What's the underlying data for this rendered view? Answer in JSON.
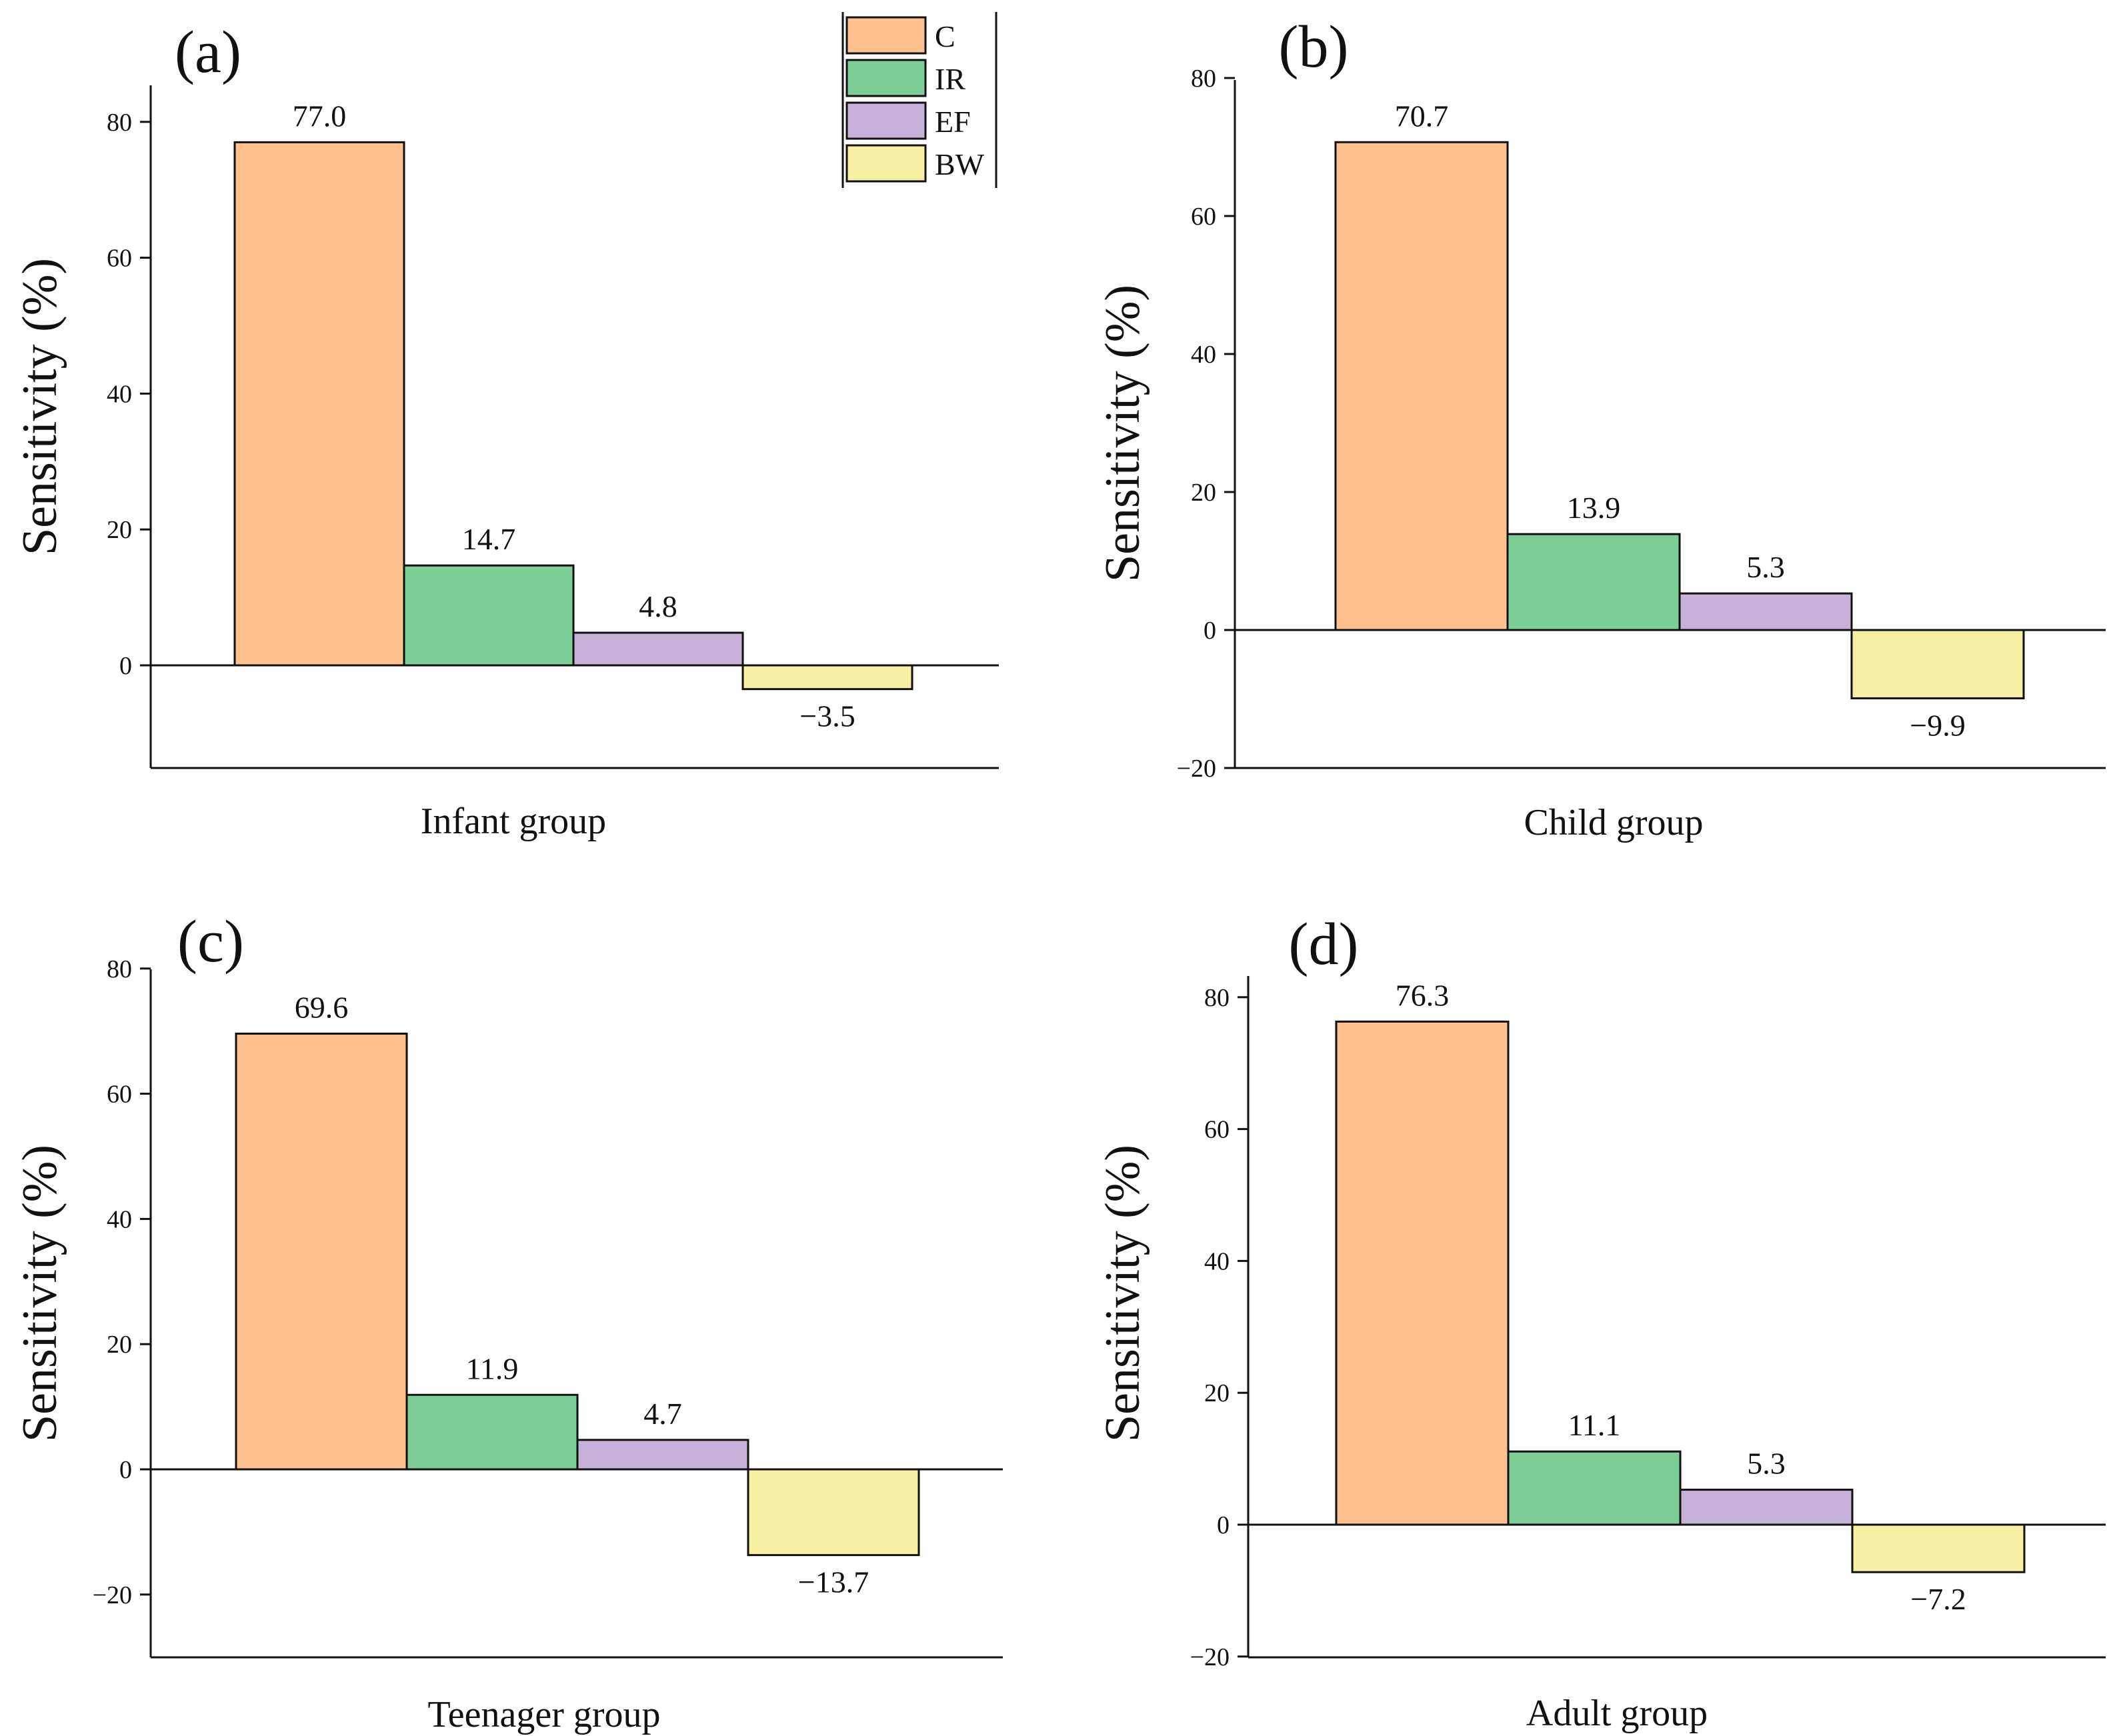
{
  "figure_title": "",
  "legend": {
    "items": [
      {
        "label": "C",
        "color": "#FFC08F"
      },
      {
        "label": "IR",
        "color": "#7DCF97"
      },
      {
        "label": "EF",
        "color": "#C6B1D8"
      },
      {
        "label": "BW",
        "color": "#F6F1A2"
      }
    ]
  },
  "chart_data": [
    {
      "type": "bar",
      "panel_label": "(a)",
      "title": "",
      "xlabel": "Infant group",
      "ylabel": "Sensitivity (%)",
      "categories": [
        "C",
        "IR",
        "EF",
        "BW"
      ],
      "values": [
        77.0,
        14.7,
        4.8,
        -3.5
      ],
      "value_labels": [
        "77.0",
        "14.7",
        "4.8",
        "−3.5"
      ],
      "ylim": [
        -15,
        85
      ],
      "yticks": [
        0,
        20,
        40,
        60,
        80
      ],
      "ytick_labels": [
        "0",
        "20",
        "40",
        "60",
        "80"
      ],
      "grid": false,
      "legend": "top-right"
    },
    {
      "type": "bar",
      "panel_label": "(b)",
      "title": "",
      "xlabel": "Child group",
      "ylabel": "Sensitivity (%)",
      "categories": [
        "C",
        "IR",
        "EF",
        "BW"
      ],
      "values": [
        70.7,
        13.9,
        5.3,
        -9.9
      ],
      "value_labels": [
        "70.7",
        "13.9",
        "5.3",
        "−9.9"
      ],
      "ylim": [
        -20,
        80
      ],
      "yticks": [
        -20,
        0,
        20,
        40,
        60,
        80
      ],
      "ytick_labels": [
        "−20",
        "0",
        "20",
        "40",
        "60",
        "80"
      ],
      "grid": false
    },
    {
      "type": "bar",
      "panel_label": "(c)",
      "title": "",
      "xlabel": "Teenager group",
      "ylabel": "Sensitivity (%)",
      "categories": [
        "C",
        "IR",
        "EF",
        "BW"
      ],
      "values": [
        69.6,
        11.9,
        4.7,
        -13.7
      ],
      "value_labels": [
        "69.6",
        "11.9",
        "4.7",
        "−13.7"
      ],
      "ylim": [
        -30,
        80
      ],
      "yticks": [
        -20,
        0,
        20,
        40,
        60,
        80
      ],
      "ytick_labels": [
        "−20",
        "0",
        "20",
        "40",
        "60",
        "80"
      ],
      "grid": false
    },
    {
      "type": "bar",
      "panel_label": "(d)",
      "title": "",
      "xlabel": "Adult group",
      "ylabel": "Sensitivity (%)",
      "categories": [
        "C",
        "IR",
        "EF",
        "BW"
      ],
      "values": [
        76.3,
        11.1,
        5.3,
        -7.2
      ],
      "value_labels": [
        "76.3",
        "11.1",
        "5.3",
        "−7.2"
      ],
      "ylim": [
        -20,
        85
      ],
      "yticks": [
        -20,
        0,
        20,
        40,
        60,
        80
      ],
      "ytick_labels": [
        "−20",
        "0",
        "20",
        "40",
        "60",
        "80"
      ],
      "grid": false
    }
  ]
}
